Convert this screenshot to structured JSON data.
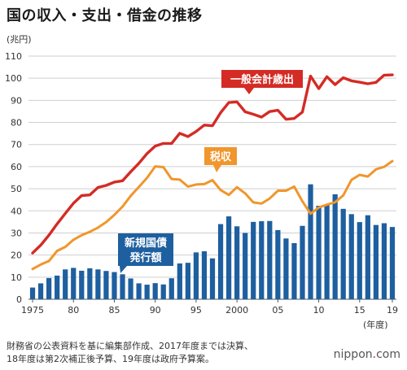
{
  "title": "国の収入・支出・借金の推移",
  "note_lines": [
    "財務省の公表資料を基に編集部作成、2017年度までは決算、",
    "18年度は第2次補正後予算、19年度は政府予算案。"
  ],
  "logo": {
    "prefix": "nippon",
    "dot": ".",
    "suffix": "com"
  },
  "colors": {
    "expenditure": "#d42b25",
    "tax": "#f0962c",
    "bonds": "#1e5fa0",
    "grid": "#cfcfcf",
    "axis": "#555555",
    "label_text": "#ffffff"
  },
  "chart_data": {
    "type": "bar+line",
    "unit_label": "(兆円)",
    "x_unit_label": "(年度)",
    "ylim": [
      0,
      110
    ],
    "yticks": [
      0,
      10,
      20,
      30,
      40,
      50,
      60,
      70,
      80,
      90,
      100,
      110
    ],
    "grid": true,
    "x": [
      1975,
      1976,
      1977,
      1978,
      1979,
      1980,
      1981,
      1982,
      1983,
      1984,
      1985,
      1986,
      1987,
      1988,
      1989,
      1990,
      1991,
      1992,
      1993,
      1994,
      1995,
      1996,
      1997,
      1998,
      1999,
      2000,
      2001,
      2002,
      2003,
      2004,
      2005,
      2006,
      2007,
      2008,
      2009,
      2010,
      2011,
      2012,
      2013,
      2014,
      2015,
      2016,
      2017,
      2018,
      2019
    ],
    "xtick_values": [
      1975,
      1980,
      1985,
      1990,
      1995,
      2000,
      2005,
      2010,
      2015,
      2019
    ],
    "xtick_labels": [
      "1975",
      "80",
      "85",
      "90",
      "95",
      "2000",
      "05",
      "10",
      "15",
      "19"
    ],
    "series": [
      {
        "name": "一般会計歳出",
        "kind": "line",
        "values": [
          20.9,
          24.5,
          29.0,
          34.1,
          38.8,
          43.4,
          46.9,
          47.2,
          50.6,
          51.5,
          53.0,
          53.6,
          57.7,
          61.5,
          65.9,
          69.3,
          70.5,
          70.5,
          75.1,
          73.6,
          75.9,
          78.8,
          78.5,
          84.4,
          89.0,
          89.3,
          84.8,
          83.7,
          82.4,
          84.9,
          85.5,
          81.4,
          81.8,
          84.7,
          101.0,
          95.3,
          100.7,
          97.1,
          100.2,
          98.8,
          98.2,
          97.5,
          98.1,
          101.4,
          101.5
        ]
      },
      {
        "name": "税収",
        "kind": "line",
        "values": [
          13.7,
          15.7,
          17.3,
          21.9,
          23.7,
          26.9,
          29.0,
          30.5,
          32.4,
          34.9,
          38.2,
          41.9,
          46.8,
          50.8,
          54.9,
          60.1,
          59.8,
          54.4,
          54.1,
          51.0,
          51.9,
          52.1,
          53.9,
          49.4,
          47.2,
          50.7,
          47.9,
          43.8,
          43.3,
          45.6,
          49.1,
          49.1,
          51.0,
          44.3,
          38.7,
          41.5,
          42.8,
          43.9,
          47.0,
          54.0,
          56.3,
          55.5,
          58.8,
          59.9,
          62.5
        ]
      },
      {
        "name": "新規国債発行額",
        "kind": "bar",
        "values": [
          5.3,
          7.2,
          9.6,
          10.7,
          13.5,
          14.2,
          12.9,
          14.0,
          13.5,
          12.8,
          12.3,
          11.3,
          9.4,
          7.2,
          6.6,
          7.3,
          6.7,
          9.5,
          16.2,
          16.5,
          21.2,
          21.7,
          18.5,
          34.0,
          37.5,
          33.0,
          30.0,
          35.0,
          35.3,
          35.4,
          31.3,
          27.5,
          25.4,
          33.2,
          52.0,
          42.3,
          42.8,
          47.5,
          40.9,
          38.5,
          34.9,
          38.0,
          33.6,
          34.4,
          32.7
        ]
      }
    ],
    "annotations": [
      {
        "text": "一般会計歳出",
        "series": "一般会計歳出"
      },
      {
        "text": "税収",
        "series": "税収"
      },
      {
        "text": "新規国債",
        "text2": "発行額",
        "series": "新規国債発行額"
      }
    ]
  }
}
